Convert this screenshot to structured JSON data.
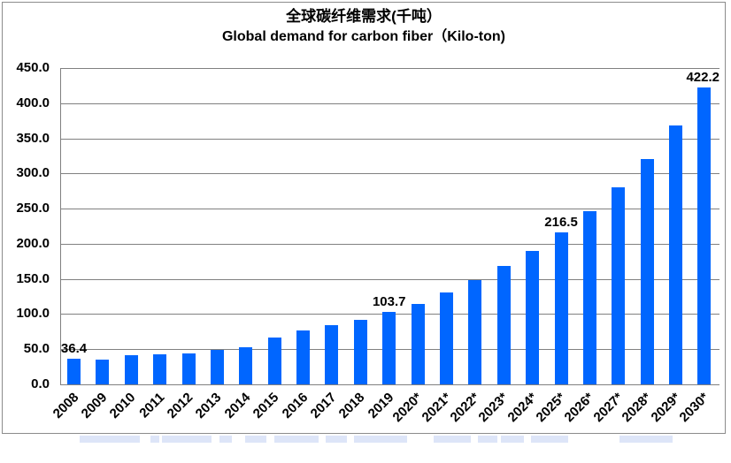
{
  "title": {
    "line1": "全球碳纤维需求(千吨）",
    "line2": "Global demand for carbon fiber（Kilo-ton)"
  },
  "chart_data": {
    "type": "bar",
    "title": "全球碳纤维需求(千吨） / Global demand for carbon fiber（Kilo-ton)",
    "categories": [
      "2008",
      "2009",
      "2010",
      "2011",
      "2012",
      "2013",
      "2014",
      "2015",
      "2016",
      "2017",
      "2018",
      "2019",
      "2020*",
      "2021*",
      "2022*",
      "2023*",
      "2024*",
      "2025*",
      "2026*",
      "2027*",
      "2028*",
      "2029*",
      "2030*"
    ],
    "values": [
      36.4,
      35.0,
      41.0,
      43.0,
      44.5,
      48.5,
      52.5,
      66.5,
      76.5,
      84.0,
      92.0,
      103.7,
      115.0,
      131.0,
      148.0,
      168.0,
      190.0,
      216.5,
      246.0,
      280.0,
      321.0,
      368.0,
      422.2
    ],
    "data_labels": {
      "2008": "36.4",
      "2019": "103.7",
      "2025*": "216.5",
      "2030*": "422.2"
    },
    "ylim": [
      0,
      450
    ],
    "ytick_step": 50,
    "yticks": [
      "0.0",
      "50.0",
      "100.0",
      "150.0",
      "200.0",
      "250.0",
      "300.0",
      "350.0",
      "400.0",
      "450.0"
    ],
    "xlabel": "",
    "ylabel": "",
    "legend_position": "none",
    "grid": "horizontal",
    "bar_color": "#0066FF",
    "gridline_color": "#808080"
  }
}
